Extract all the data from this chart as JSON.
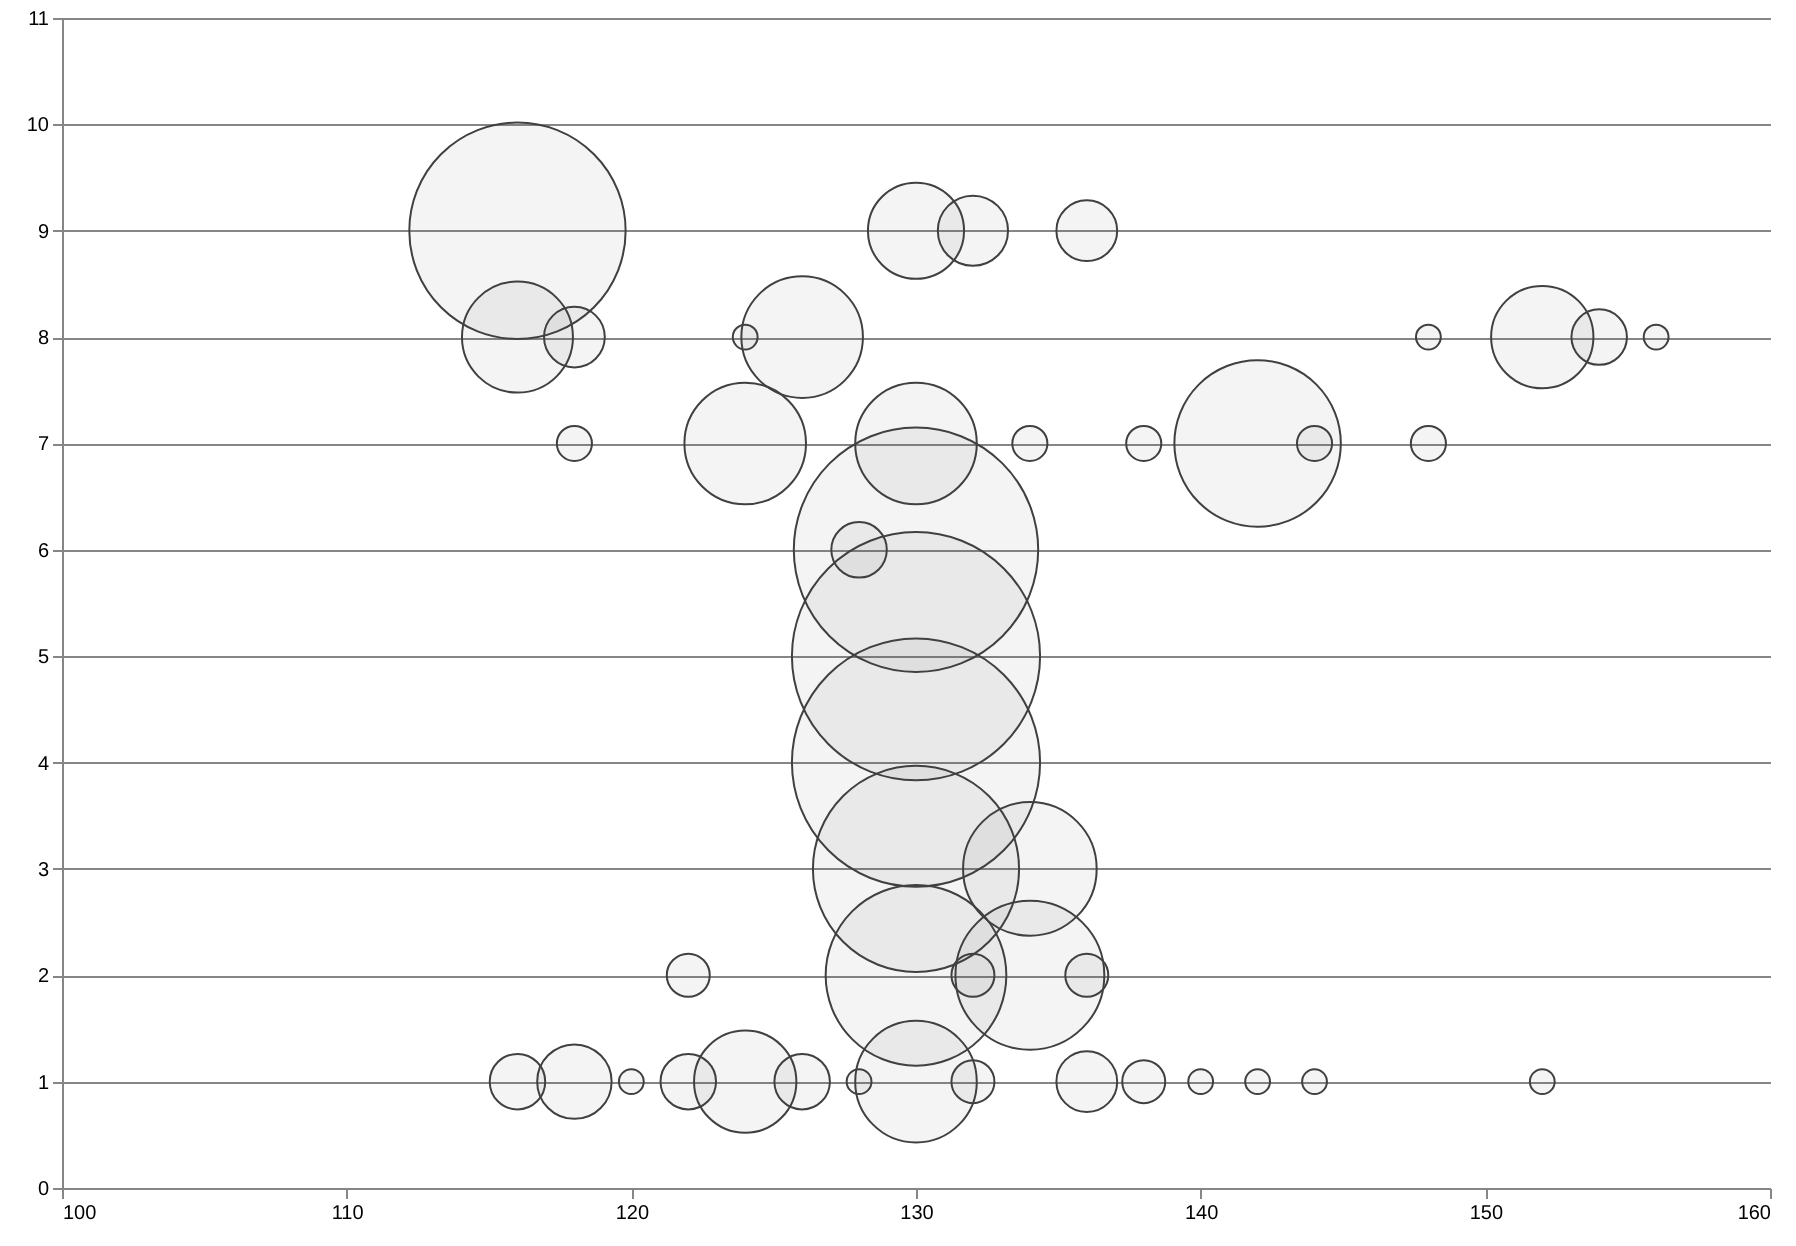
{
  "chart_data": {
    "type": "bubble",
    "xlim": [
      100,
      160
    ],
    "xticks": [
      100,
      110,
      120,
      130,
      140,
      150,
      160
    ],
    "ylim": [
      0,
      11
    ],
    "yticks": [
      0,
      1,
      2,
      3,
      4,
      5,
      6,
      7,
      8,
      9,
      10,
      11
    ],
    "grid": "y",
    "series": [
      {
        "color": "#404040",
        "x": [
          116,
          130,
          132,
          136,
          116,
          118,
          124,
          126,
          148,
          152,
          154,
          156,
          118,
          124,
          130,
          134,
          138,
          142,
          144,
          148,
          128,
          130,
          130,
          130,
          130,
          134,
          122,
          130,
          132,
          134,
          136,
          116,
          118,
          120,
          122,
          124,
          126,
          128,
          130,
          132,
          136,
          138,
          140,
          142,
          144,
          152
        ],
        "values": [
          9,
          9,
          9,
          9,
          8,
          8,
          8,
          8,
          8,
          8,
          8,
          8,
          7,
          7,
          7,
          7,
          7,
          7,
          7,
          7,
          6,
          6,
          5,
          4,
          3,
          3,
          2,
          2,
          2,
          2,
          2,
          1,
          1,
          1,
          1,
          1,
          1,
          1,
          1,
          1,
          1,
          1,
          1,
          1,
          1,
          1
        ],
        "sizes": [
          0.76,
          0.15,
          0.08,
          0.06,
          0.2,
          0.06,
          0.01,
          0.24,
          0.01,
          0.17,
          0.05,
          0.01,
          0.02,
          0.24,
          0.24,
          0.02,
          0.02,
          0.45,
          0.02,
          0.02,
          0.05,
          0.97,
          1,
          1,
          0.69,
          0.29,
          0.03,
          0.53,
          0.03,
          0.36,
          0.03,
          0.05,
          0.09,
          0.01,
          0.05,
          0.17,
          0.05,
          0.01,
          0.24,
          0.03,
          0.06,
          0.03,
          0.01,
          0.01,
          0.01,
          0.01
        ]
      }
    ]
  }
}
